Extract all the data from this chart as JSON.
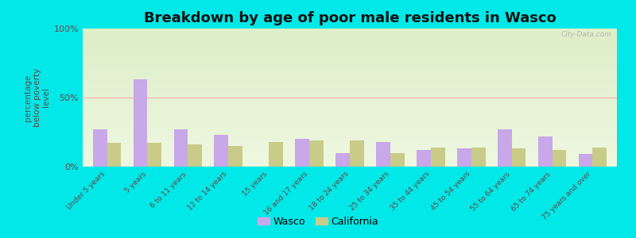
{
  "title": "Breakdown by age of poor male residents in Wasco",
  "ylabel": "percentage\nbelow poverty\nlevel",
  "categories": [
    "Under 5 years",
    "5 years",
    "6 to 11 years",
    "12 to 14 years",
    "15 years",
    "16 and 17 years",
    "18 to 24 years",
    "25 to 34 years",
    "35 to 44 years",
    "45 to 54 years",
    "55 to 64 years",
    "65 to 74 years",
    "75 years and over"
  ],
  "wasco_values": [
    27,
    63,
    27,
    23,
    0,
    20,
    10,
    18,
    12,
    13,
    27,
    22,
    9
  ],
  "california_values": [
    17,
    17,
    16,
    15,
    18,
    19,
    19,
    10,
    14,
    14,
    13,
    12,
    14
  ],
  "wasco_color": "#c8a8e8",
  "california_color": "#c8cc88",
  "bg_color": "#00e8e8",
  "plot_bg_top": "#ddeec8",
  "plot_bg_bottom": "#eef8e0",
  "ylim": [
    0,
    100
  ],
  "yticks": [
    0,
    50,
    100
  ],
  "ytick_labels": [
    "0%",
    "50%",
    "100%"
  ],
  "bar_width": 0.35,
  "title_fontsize": 13,
  "ylabel_fontsize": 7.5,
  "legend_labels": [
    "Wasco",
    "California"
  ],
  "watermark": "City-Data.com"
}
